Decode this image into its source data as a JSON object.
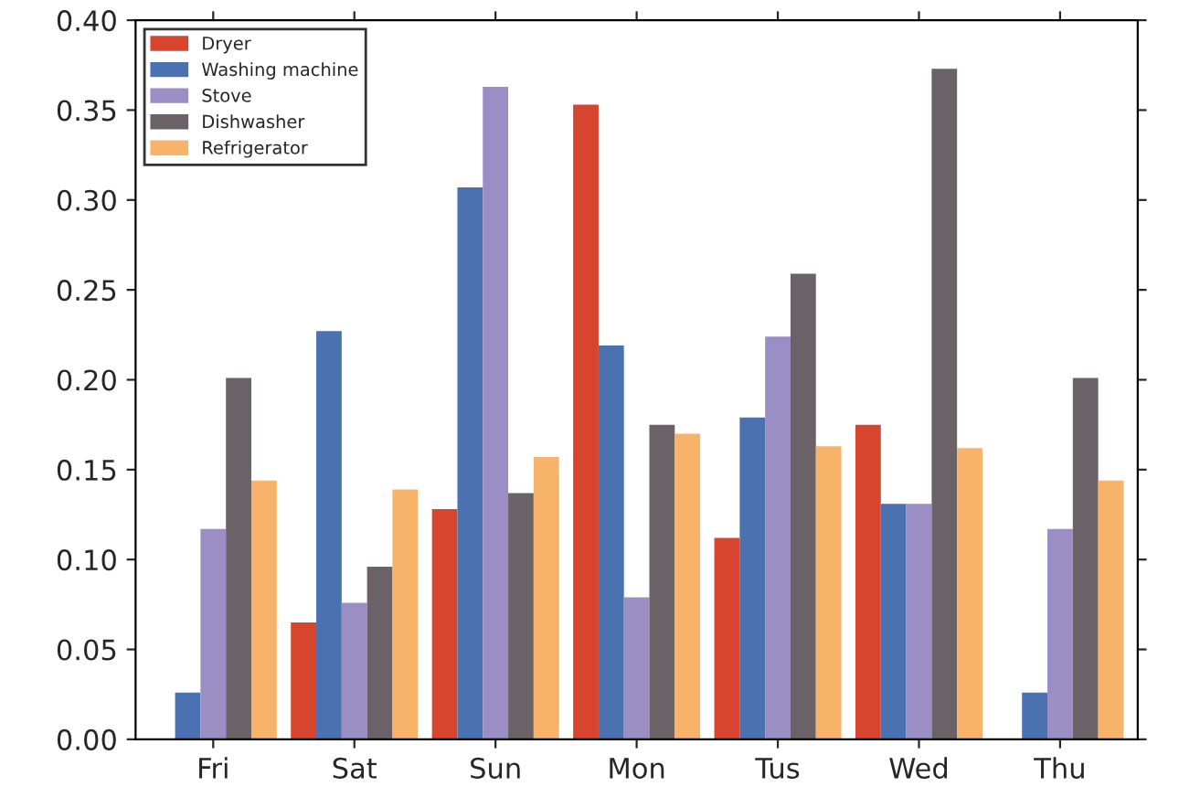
{
  "chart_data": {
    "type": "bar",
    "categories": [
      "Fri",
      "Sat",
      "Sun",
      "Mon",
      "Tus",
      "Wed",
      "Thu"
    ],
    "series": [
      {
        "name": "Dryer",
        "color": "#d7452f",
        "values": [
          null,
          0.065,
          0.128,
          0.353,
          0.112,
          0.175,
          null
        ]
      },
      {
        "name": "Washing machine",
        "color": "#4a72b0",
        "values": [
          0.026,
          0.227,
          0.307,
          0.219,
          0.179,
          0.131,
          0.026
        ]
      },
      {
        "name": "Stove",
        "color": "#9a8ec4",
        "values": [
          0.117,
          0.076,
          0.363,
          0.079,
          0.224,
          0.131,
          0.117
        ]
      },
      {
        "name": "Dishwasher",
        "color": "#6b6268",
        "values": [
          0.201,
          0.096,
          0.137,
          0.175,
          0.259,
          0.373,
          0.201
        ]
      },
      {
        "name": "Refrigerator",
        "color": "#f7b36a",
        "values": [
          0.144,
          0.139,
          0.157,
          0.17,
          0.163,
          0.162,
          0.144
        ]
      }
    ],
    "ylim": [
      0,
      0.4
    ],
    "yticks": [
      {
        "value": 0,
        "label": "0.00"
      },
      {
        "value": 0.05,
        "label": "0.05"
      },
      {
        "value": 0.1,
        "label": "0.10"
      },
      {
        "value": 0.15,
        "label": "0.15"
      },
      {
        "value": 0.2,
        "label": "0.20"
      },
      {
        "value": 0.25,
        "label": "0.25"
      },
      {
        "value": 0.3,
        "label": "0.30"
      },
      {
        "value": 0.35,
        "label": "0.35"
      },
      {
        "value": 0.4,
        "label": "0.40"
      }
    ],
    "grid": false,
    "legend": "top left"
  }
}
